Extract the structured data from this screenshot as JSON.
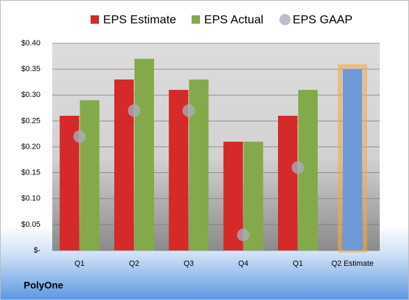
{
  "chart_data": {
    "type": "bar",
    "title": "PolyOne",
    "categories": [
      "Q1",
      "Q2",
      "Q3",
      "Q4",
      "Q1",
      "Q2 Estimate"
    ],
    "series": [
      {
        "name": "EPS Estimate",
        "color": "#d42a2a",
        "values": [
          0.26,
          0.33,
          0.31,
          0.21,
          0.26,
          0.35
        ]
      },
      {
        "name": "EPS Actual",
        "color": "#84a94a",
        "values": [
          0.29,
          0.37,
          0.33,
          0.21,
          0.31,
          null
        ]
      },
      {
        "name": "EPS GAAP",
        "color": "#a9b0bd",
        "marker": "circle",
        "values": [
          0.22,
          0.27,
          0.27,
          0.03,
          0.16,
          null
        ]
      }
    ],
    "forecast_color": "#6f9ad6",
    "forecast_glow": "#f5a94e",
    "ylim": [
      0,
      0.4
    ],
    "yticks": [
      {
        "value": 0,
        "label": "$-"
      },
      {
        "value": 0.05,
        "label": "$0.05"
      },
      {
        "value": 0.1,
        "label": "$0.10"
      },
      {
        "value": 0.15,
        "label": "$0.15"
      },
      {
        "value": 0.2,
        "label": "$0.20"
      },
      {
        "value": 0.25,
        "label": "$0.25"
      },
      {
        "value": 0.3,
        "label": "$0.30"
      },
      {
        "value": 0.35,
        "label": "$0.35"
      },
      {
        "value": 0.4,
        "label": "$0.40"
      }
    ],
    "grid": true,
    "legend": "top"
  }
}
